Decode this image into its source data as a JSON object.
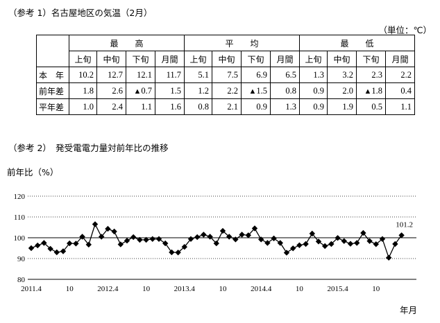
{
  "ref1_title": "（参考 1）名古屋地区の気温（2月）",
  "unit_label": "（単位：℃）",
  "temp_table": {
    "groups": [
      "最　　高",
      "平　　均",
      "最　　低"
    ],
    "subheaders": [
      "上旬",
      "中旬",
      "下旬",
      "月間"
    ],
    "rows": [
      {
        "label": "本　年",
        "values": [
          "10.2",
          "12.7",
          "12.1",
          "11.7",
          "5.1",
          "7.5",
          "6.9",
          "6.5",
          "1.3",
          "3.2",
          "2.3",
          "2.2"
        ]
      },
      {
        "label": "前年差",
        "values": [
          "1.8",
          "2.6",
          "▲0.7",
          "1.5",
          "1.2",
          "2.2",
          "▲1.5",
          "0.8",
          "0.9",
          "2.0",
          "▲1.8",
          "0.4"
        ]
      },
      {
        "label": "平年差",
        "values": [
          "1.0",
          "2.4",
          "1.1",
          "1.6",
          "0.8",
          "2.1",
          "0.9",
          "1.3",
          "0.9",
          "1.9",
          "0.5",
          "1.1"
        ]
      }
    ]
  },
  "ref2_title": "（参考 2）　発受電電力量対前年比の推移",
  "ylabel": "前年比（%）",
  "xlabel": "年月",
  "chart_data": {
    "type": "line",
    "ylabel": "前年比（%）",
    "xlabel": "年月",
    "ylim": [
      80,
      120
    ],
    "yticks": [
      80,
      90,
      100,
      110,
      120
    ],
    "xtick_labels": [
      {
        "index": 0,
        "label": "2011.4"
      },
      {
        "index": 6,
        "label": "10"
      },
      {
        "index": 12,
        "label": "2012.4"
      },
      {
        "index": 18,
        "label": "10"
      },
      {
        "index": 24,
        "label": "2013.4"
      },
      {
        "index": 30,
        "label": "10"
      },
      {
        "index": 36,
        "label": "2014.4"
      },
      {
        "index": 42,
        "label": "10"
      },
      {
        "index": 48,
        "label": "2015.4"
      },
      {
        "index": 54,
        "label": "10"
      }
    ],
    "x_start": "2011.4",
    "x_end": "2016.2",
    "last_value_label": "101.2",
    "series": [
      {
        "values": [
          95.0,
          96.3,
          97.5,
          94.7,
          93.0,
          93.5,
          97.3,
          97.2,
          100.5,
          96.7,
          106.5,
          100.5,
          104.3,
          103.0,
          96.8,
          98.6,
          100.3,
          99.0,
          99.0,
          99.4,
          99.4,
          97.3,
          93.0,
          92.9,
          95.6,
          99.4,
          100.3,
          101.5,
          100.5,
          97.3,
          103.3,
          100.5,
          99.2,
          101.5,
          101.2,
          104.5,
          99.2,
          97.5,
          99.7,
          97.5,
          92.8,
          94.9,
          96.4,
          97.0,
          102.0,
          98.2,
          96.0,
          97.0,
          99.9,
          98.4,
          97.1,
          97.5,
          102.3,
          98.4,
          96.9,
          99.4,
          90.4,
          97.0,
          101.2
        ]
      }
    ]
  }
}
